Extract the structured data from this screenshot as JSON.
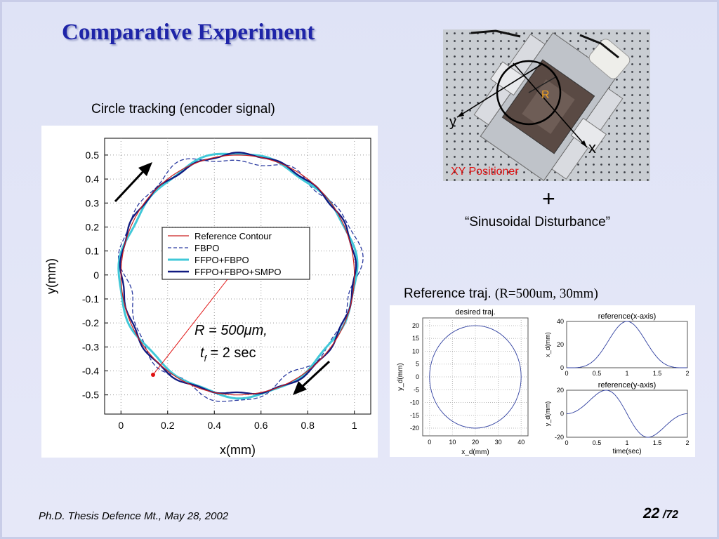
{
  "slide": {
    "title": "Comparative Experiment",
    "main_caption": "Circle tracking (encoder signal)",
    "plus": "+",
    "disturbance": "“Sinusoidal Disturbance”",
    "ref_caption_sans": "Reference traj.",
    "ref_caption_serif": "(R=500um, 30mm)",
    "footer": "Ph.D. Thesis Defence Mt., May 28, 2002",
    "page_current": "22",
    "page_total": "/72"
  },
  "photo": {
    "label_R": "R",
    "label_x": "x",
    "label_y": "y",
    "caption": "XY Positioner"
  },
  "annotation": {
    "line1": "R = 500μm,",
    "line2_t": "t",
    "line2_sub": "f",
    "line2_rest": " = 2 sec"
  },
  "chart_data": [
    {
      "type": "line",
      "title": "",
      "xlabel": "x(mm)",
      "ylabel": "y(mm)",
      "xlim": [
        -0.07,
        1.07
      ],
      "ylim": [
        -0.58,
        0.57
      ],
      "xticks": [
        "0",
        "0.2",
        "0.4",
        "0.6",
        "0.8",
        "1"
      ],
      "yticks": [
        "0.5",
        "0.4",
        "0.3",
        "0.2",
        "0.1",
        "0",
        "-0.1",
        "-0.2",
        "-0.3",
        "-0.4",
        "-0.5"
      ],
      "grid": true,
      "legend_position": "center",
      "circle": {
        "center": [
          0.5,
          0.0
        ],
        "radius": 0.5
      },
      "series": [
        {
          "name": "Reference Contour",
          "color": "#cc2020",
          "style": "solid"
        },
        {
          "name": "FBPO",
          "color": "#2a3aa0",
          "style": "dashed"
        },
        {
          "name": "FFPO+FBPO",
          "color": "#40c8d8",
          "style": "solid"
        },
        {
          "name": "FFPO+FBPO+SMPO",
          "color": "#101a80",
          "style": "solid"
        }
      ]
    },
    {
      "type": "line",
      "title": "desired traj.",
      "xlabel": "x_d(mm)",
      "ylabel": "y_d(mm)",
      "xticks": [
        "0",
        "10",
        "20",
        "30",
        "40"
      ],
      "yticks": [
        "20",
        "15",
        "10",
        "5",
        "0",
        "-5",
        "-10",
        "-15",
        "-20"
      ],
      "xlim": [
        0,
        40
      ],
      "ylim": [
        -20,
        20
      ],
      "grid": true,
      "circle": {
        "center": [
          20,
          0
        ],
        "radius": 20
      }
    },
    {
      "type": "line",
      "title": "reference(x-axis)",
      "xlabel": "",
      "ylabel": "x_d(mm)",
      "xticks": [
        "0",
        "0.5",
        "1",
        "1.5",
        "2"
      ],
      "yticks": [
        "40",
        "20",
        "0"
      ],
      "xlim": [
        0,
        2
      ],
      "ylim": [
        0,
        40
      ]
    },
    {
      "type": "line",
      "title": "reference(y-axis)",
      "xlabel": "time(sec)",
      "ylabel": "y_d(mm)",
      "xticks": [
        "0",
        "0.5",
        "1",
        "1.5",
        "2"
      ],
      "yticks": [
        "20",
        "0",
        "-20"
      ],
      "xlim": [
        0,
        2
      ],
      "ylim": [
        -20,
        20
      ]
    }
  ]
}
